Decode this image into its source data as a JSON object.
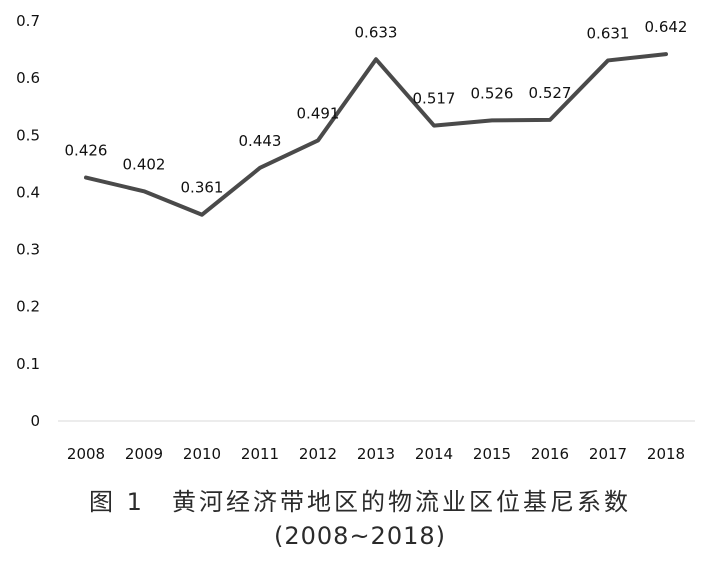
{
  "chart_data": {
    "type": "line",
    "title": "",
    "xlabel": "",
    "ylabel": "",
    "categories": [
      "2008",
      "2009",
      "2010",
      "2011",
      "2012",
      "2013",
      "2014",
      "2015",
      "2016",
      "2017",
      "2018"
    ],
    "series": [
      {
        "values": [
          0.426,
          0.402,
          0.361,
          0.443,
          0.491,
          0.633,
          0.517,
          0.526,
          0.527,
          0.631,
          0.642
        ],
        "labels": [
          "0.426",
          "0.402",
          "0.361",
          "0.443",
          "0.491",
          "0.633",
          "0.517",
          "0.526",
          "0.527",
          "0.631",
          "0.642"
        ],
        "color": "#4a4a4a"
      }
    ],
    "ylim": [
      0,
      0.7
    ],
    "yticks": [
      "0",
      "0.1",
      "0.2",
      "0.3",
      "0.4",
      "0.5",
      "0.6",
      "0.7"
    ],
    "grid": false,
    "legend": "none"
  },
  "caption": {
    "line1": "图 1　黄河经济带地区的物流业区位基尼系数",
    "line2": "(2008~2018)"
  },
  "colors": {
    "line": "#4a4a4a",
    "axis": "#d9d9d9"
  }
}
